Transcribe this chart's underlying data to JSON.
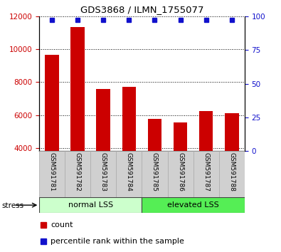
{
  "title": "GDS3868 / ILMN_1755077",
  "categories": [
    "GSM591781",
    "GSM591782",
    "GSM591783",
    "GSM591784",
    "GSM591785",
    "GSM591786",
    "GSM591787",
    "GSM591788"
  ],
  "counts": [
    9650,
    11350,
    7600,
    7700,
    5750,
    5550,
    6250,
    6100
  ],
  "percentiles": [
    100,
    100,
    100,
    100,
    100,
    100,
    100,
    100
  ],
  "ylim_left": [
    3800,
    12000
  ],
  "ylim_right": [
    0,
    100
  ],
  "yticks_left": [
    4000,
    6000,
    8000,
    10000,
    12000
  ],
  "yticks_right": [
    0,
    25,
    50,
    75,
    100
  ],
  "bar_color": "#cc0000",
  "scatter_color": "#1111cc",
  "group1_label": "normal LSS",
  "group2_label": "elevated LSS",
  "group1_color": "#ccffcc",
  "group2_color": "#55ee55",
  "group1_count": 4,
  "group2_count": 4,
  "stress_label": "stress",
  "legend_count_label": "count",
  "legend_pct_label": "percentile rank within the sample",
  "bar_width": 0.55,
  "label_bg_color": "#d0d0d0",
  "label_edge_color": "#aaaaaa"
}
